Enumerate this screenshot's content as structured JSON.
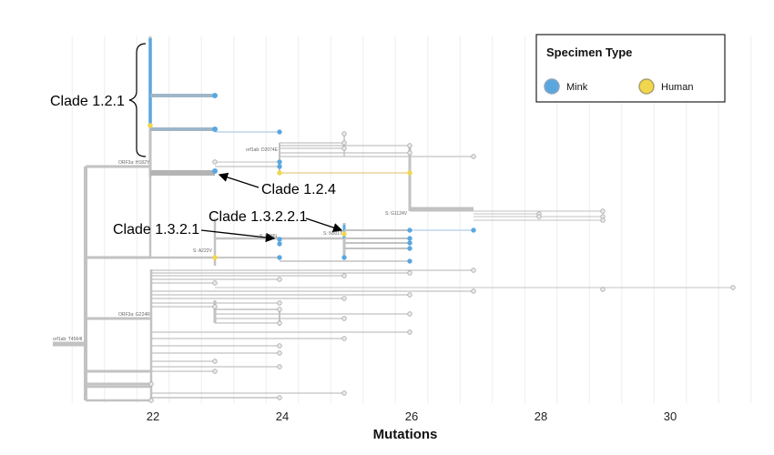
{
  "chart_data": {
    "type": "scatter",
    "xlabel": "Mutations",
    "x_ticks": [
      "22",
      "24",
      "26",
      "28",
      "30"
    ],
    "xlim": [
      20.5,
      31.5
    ],
    "grid": "vertical",
    "legend": {
      "title": "Specimen Type",
      "position": "top-right",
      "items": [
        {
          "label": "Mink",
          "color": "#5aa7e0"
        },
        {
          "label": "Human",
          "color": "#f2d64b"
        }
      ]
    },
    "colors": {
      "mink": "#5aa7e0",
      "human": "#f2d64b",
      "other": "#bdbdbd",
      "branch": "#c2c2c2"
    },
    "branch_labels": [
      "orf1ab: T4564I",
      "ORF3a: G224R",
      "ORF3a: H182Y",
      "orf1ab: D2074E",
      "S: G1124V",
      "S: A222V",
      "S: F486L",
      "S: N501T"
    ],
    "clade_labels": [
      "Clade 1.2.1",
      "Clade 1.2.4",
      "Clade 1.3.2.1",
      "Clade 1.3.2.2.1"
    ]
  }
}
